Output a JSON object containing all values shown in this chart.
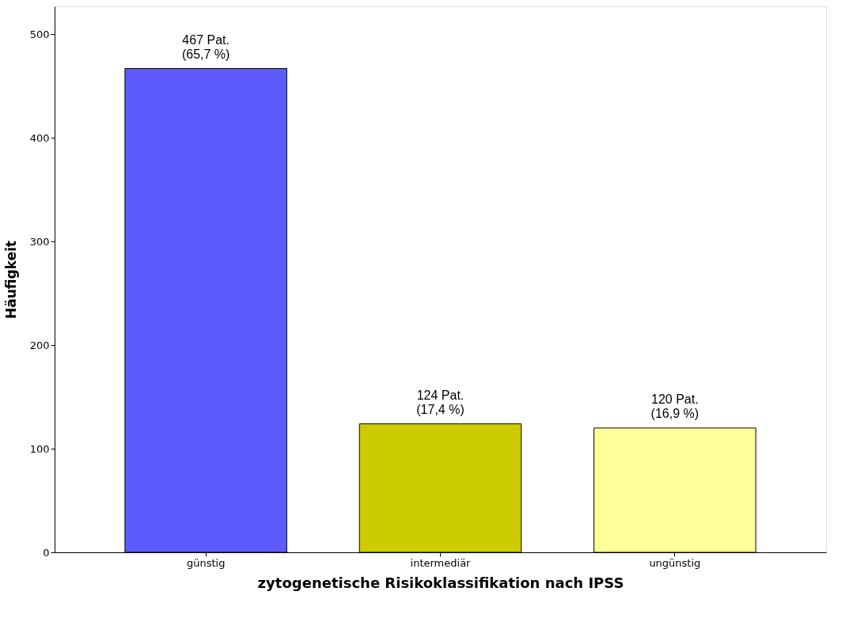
{
  "chart_data": {
    "type": "bar",
    "xlabel": "zytogenetische Risikoklassifikation nach IPSS",
    "ylabel": "Häufigkeit",
    "categories": [
      "günstig",
      "intermediär",
      "ungünstig"
    ],
    "values": [
      467,
      124,
      120
    ],
    "colors": [
      "#5b5bff",
      "#cccc00",
      "#ffff99"
    ],
    "value_labels": [
      "467 Pat.\n(65,7 %)",
      "124 Pat.\n(17,4 %)",
      "120 Pat.\n(16,9 %)"
    ],
    "ylim": [
      0,
      527
    ],
    "yticks": [
      0,
      100,
      200,
      300,
      400,
      500
    ],
    "grid": false
  }
}
